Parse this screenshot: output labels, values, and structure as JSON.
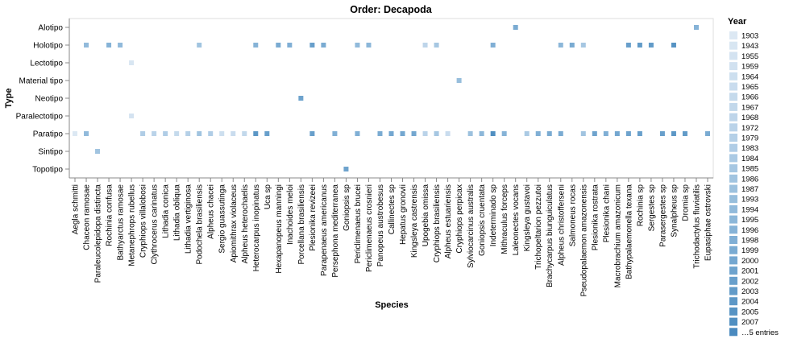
{
  "chart_data": {
    "type": "heatmap",
    "title": "Order: Decapoda",
    "xlabel": "Species",
    "ylabel": "Type",
    "grid": false,
    "legend_position": "right",
    "legend_title": "Year",
    "legend_entries": [
      "1903",
      "1943",
      "1955",
      "1959",
      "1964",
      "1965",
      "1966",
      "1967",
      "1968",
      "1972",
      "1979",
      "1983",
      "1984",
      "1985",
      "1986",
      "1987",
      "1993",
      "1994",
      "1995",
      "1996",
      "1998",
      "1999",
      "2000",
      "2001",
      "2002",
      "2003",
      "2004",
      "2005",
      "2007",
      "…5 entries"
    ],
    "legend_colors": [
      "#dce8f3",
      "#d8e6f2",
      "#d4e3f1",
      "#d1e1f0",
      "#cddfef",
      "#c9dcee",
      "#c5daec",
      "#c2d8eb",
      "#bed5ea",
      "#bad3e9",
      "#b5d0e7",
      "#b0cde6",
      "#abcae4",
      "#a6c7e2",
      "#a1c4e0",
      "#9cc1de",
      "#97bedc",
      "#91badb",
      "#8cb7d9",
      "#86b3d7",
      "#80afd5",
      "#7aabd2",
      "#74a7d0",
      "#6ea3cd",
      "#689fcb",
      "#629bc8",
      "#5c97c6",
      "#5693c3",
      "#508fc1",
      "#4a8abf"
    ],
    "types": [
      "Alotipo",
      "Holotipo",
      "Lectotipo",
      "Material tipo",
      "Neotipo",
      "Paralectotipo",
      "Paratipo",
      "Sintipo",
      "Topotipo"
    ],
    "species": [
      "Aegla schmitti",
      "Chaceon ramosae",
      "Paraleucolepidopa distincta",
      "Rochinia confusa",
      "Bathyarctus ramosae",
      "Metanephrops rubellus",
      "Cryphiops villalobosi",
      "Clythrocerus carinatus",
      "Lithadia conica",
      "Lithadia obliqua",
      "Lithadia vertiginosa",
      "Podochela brasiliensis",
      "Alpheus chacei",
      "Sergio guassutinga",
      "Apiomithrax violaceus",
      "Alpheus heterochaelis",
      "Heterocarpus inopinatus",
      "Uca sp",
      "Hexapanopeus manningi",
      "Inachoides meloi",
      "Porcellana brasiliensis",
      "Plesionika revizeei",
      "Parapenaeus americanus",
      "Persephona mediterranea",
      "Goniopsis sp",
      "Periclimenaeus brucei",
      "Periclimenaeus crosnieri",
      "Panopeus austrobesus",
      "Callinectes sp",
      "Hepatus gronovii",
      "Kingsleya castrensis",
      "Upogebia omissa",
      "Cryphiops brasiliensis",
      "Alpheus estuariensis",
      "Cryphiops perpicax",
      "Sylviocarcinus australis",
      "Goniopsis cruentata",
      "Indeterminado sp",
      "Mithraculus forceps",
      "Laleonectes vocans",
      "Kingsleya gustavoi",
      "Trichopeltarion pezzutoi",
      "Brachycarpus biunguiculatus",
      "Alpheus christofferseni",
      "Salmoneus rocas",
      "Pseudopalaemon amazonensis",
      "Plesionika rostrata",
      "Plesionika chani",
      "Macrobrachium amazonicum",
      "Bathypalaemonella texana",
      "Rochinia sp",
      "Sergestes sp",
      "Parasergestes sp",
      "Synalpheus sp",
      "Dromia sp",
      "Trichodactylus fluviatilis",
      "Eupasiphae ostrovski"
    ],
    "cells": [
      {
        "species": "Aegla schmitti",
        "type": "Paratipo",
        "year": "1903"
      },
      {
        "species": "Chaceon ramosae",
        "type": "Holotipo",
        "year": "1994"
      },
      {
        "species": "Chaceon ramosae",
        "type": "Paratipo",
        "year": "1994"
      },
      {
        "species": "Paraleucolepidopa distincta",
        "type": "Sintipo",
        "year": "1986"
      },
      {
        "species": "Rochinia confusa",
        "type": "Holotipo",
        "year": "1996"
      },
      {
        "species": "Bathyarctus ramosae",
        "type": "Holotipo",
        "year": "1994"
      },
      {
        "species": "Metanephrops rubellus",
        "type": "Lectotipo",
        "year": "1943"
      },
      {
        "species": "Metanephrops rubellus",
        "type": "Paralectotipo",
        "year": "1955"
      },
      {
        "species": "Cryphiops villalobosi",
        "type": "Paratipo",
        "year": "1983"
      },
      {
        "species": "Clythrocerus carinatus",
        "type": "Paratipo",
        "year": "1972"
      },
      {
        "species": "Lithadia conica",
        "type": "Paratipo",
        "year": "1983"
      },
      {
        "species": "Lithadia obliqua",
        "type": "Paratipo",
        "year": "1966"
      },
      {
        "species": "Lithadia vertiginosa",
        "type": "Paratipo",
        "year": "1979"
      },
      {
        "species": "Podochela brasiliensis",
        "type": "Holotipo",
        "year": "1986"
      },
      {
        "species": "Podochela brasiliensis",
        "type": "Paratipo",
        "year": "1986"
      },
      {
        "species": "Alpheus chacei",
        "type": "Paratipo",
        "year": "1983"
      },
      {
        "species": "Sergio guassutinga",
        "type": "Paratipo",
        "year": "1964"
      },
      {
        "species": "Apiomithrax violaceus",
        "type": "Paratipo",
        "year": "1965"
      },
      {
        "species": "Alpheus heterochaelis",
        "type": "Paratipo",
        "year": "1967"
      },
      {
        "species": "Heterocarpus inopinatus",
        "type": "Holotipo",
        "year": "1996"
      },
      {
        "species": "Heterocarpus inopinatus",
        "type": "Paratipo",
        "year": "2004"
      },
      {
        "species": "Uca sp",
        "type": "Paratipo",
        "year": "2002"
      },
      {
        "species": "Hexapanopeus manningi",
        "type": "Holotipo",
        "year": "1999"
      },
      {
        "species": "Inachoides meloi",
        "type": "Holotipo",
        "year": "1998"
      },
      {
        "species": "Porcellana brasiliensis",
        "type": "Neotipo",
        "year": "2001"
      },
      {
        "species": "Plesionika revizeei",
        "type": "Holotipo",
        "year": "2002"
      },
      {
        "species": "Plesionika revizeei",
        "type": "Paratipo",
        "year": "2002"
      },
      {
        "species": "Parapenaeus americanus",
        "type": "Holotipo",
        "year": "1999"
      },
      {
        "species": "Persephona mediterranea",
        "type": "Paratipo",
        "year": "1998"
      },
      {
        "species": "Goniopsis sp",
        "type": "Topotipo",
        "year": "2001"
      },
      {
        "species": "Periclimenaeus brucei",
        "type": "Holotipo",
        "year": "1994"
      },
      {
        "species": "Periclimenaeus brucei",
        "type": "Paratipo",
        "year": "1998"
      },
      {
        "species": "Periclimenaeus crosnieri",
        "type": "Holotipo",
        "year": "1995"
      },
      {
        "species": "Panopeus austrobesus",
        "type": "Paratipo",
        "year": "1999"
      },
      {
        "species": "Callinectes sp",
        "type": "Paratipo",
        "year": "2000"
      },
      {
        "species": "Hepatus gronovii",
        "type": "Paratipo",
        "year": "2000"
      },
      {
        "species": "Kingsleya castrensis",
        "type": "Paratipo",
        "year": "2000"
      },
      {
        "species": "Upogebia omissa",
        "type": "Holotipo",
        "year": "1968"
      },
      {
        "species": "Upogebia omissa",
        "type": "Paratipo",
        "year": "1972"
      },
      {
        "species": "Cryphiops brasiliensis",
        "type": "Holotipo",
        "year": "1985"
      },
      {
        "species": "Cryphiops brasiliensis",
        "type": "Paratipo",
        "year": "1985"
      },
      {
        "species": "Alpheus estuariensis",
        "type": "Paratipo",
        "year": "1965"
      },
      {
        "species": "Cryphiops perpicax",
        "type": "Material tipo",
        "year": "1993"
      },
      {
        "species": "Sylviocarcinus australis",
        "type": "Paratipo",
        "year": "1987"
      },
      {
        "species": "Goniopsis cruentata",
        "type": "Paratipo",
        "year": "1995"
      },
      {
        "species": "Indeterminado sp",
        "type": "Holotipo",
        "year": "1998"
      },
      {
        "species": "Indeterminado sp",
        "type": "Paratipo",
        "year": "2007"
      },
      {
        "species": "Mithraculus forceps",
        "type": "Paratipo",
        "year": "1996"
      },
      {
        "species": "Laleonectes vocans",
        "type": "Alotipo",
        "year": "1999"
      },
      {
        "species": "Kingsleya gustavoi",
        "type": "Paratipo",
        "year": "1984"
      },
      {
        "species": "Trichopeltarion pezzutoi",
        "type": "Paratipo",
        "year": "1998"
      },
      {
        "species": "Brachycarpus biunguiculatus",
        "type": "Paratipo",
        "year": "1999"
      },
      {
        "species": "Alpheus christofferseni",
        "type": "Holotipo",
        "year": "1995"
      },
      {
        "species": "Alpheus christofferseni",
        "type": "Paratipo",
        "year": "1999"
      },
      {
        "species": "Salmoneus rocas",
        "type": "Holotipo",
        "year": "1999"
      },
      {
        "species": "Pseudopalaemon amazonensis",
        "type": "Holotipo",
        "year": "1985"
      },
      {
        "species": "Pseudopalaemon amazonensis",
        "type": "Paratipo",
        "year": "1986"
      },
      {
        "species": "Plesionika rostrata",
        "type": "Paratipo",
        "year": "2001"
      },
      {
        "species": "Plesionika chani",
        "type": "Paratipo",
        "year": "1998"
      },
      {
        "species": "Macrobrachium amazonicum",
        "type": "Paratipo",
        "year": "2000"
      },
      {
        "species": "Bathypalaemonella texana",
        "type": "Holotipo",
        "year": "2002"
      },
      {
        "species": "Bathypalaemonella texana",
        "type": "Paratipo",
        "year": "2001"
      },
      {
        "species": "Rochinia sp",
        "type": "Holotipo",
        "year": "2003"
      },
      {
        "species": "Rochinia sp",
        "type": "Paratipo",
        "year": "2002"
      },
      {
        "species": "Sergestes sp",
        "type": "Holotipo",
        "year": "2003"
      },
      {
        "species": "Parasergestes sp",
        "type": "Paratipo",
        "year": "2002"
      },
      {
        "species": "Synalpheus sp",
        "type": "Holotipo",
        "year": "2005"
      },
      {
        "species": "Synalpheus sp",
        "type": "Paratipo",
        "year": "2004"
      },
      {
        "species": "Dromia sp",
        "type": "Paratipo",
        "year": "2003"
      },
      {
        "species": "Trichodactylus fluviatilis",
        "type": "Alotipo",
        "year": "1996"
      },
      {
        "species": "Eupasiphae ostrovski",
        "type": "Paratipo",
        "year": "1999"
      }
    ]
  }
}
